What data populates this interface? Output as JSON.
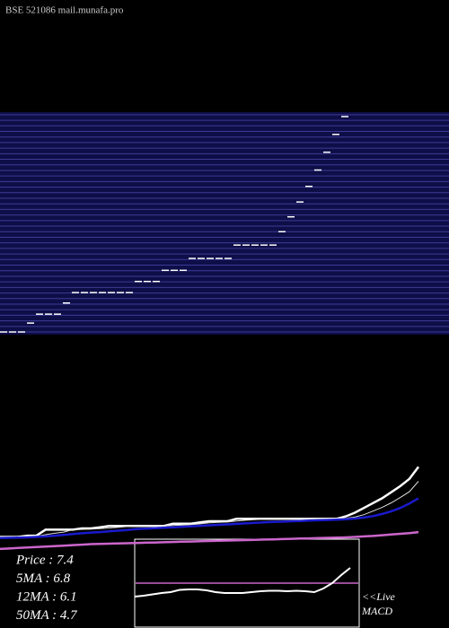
{
  "chart_data": [
    {
      "type": "candle",
      "title": "BSE 521086  mail.munafa.pro",
      "color": "#ffffff",
      "band_color": "#0e0e48",
      "level_color": "#3c3c96",
      "ylim": [
        4.44,
        7.52
      ],
      "levels": [
        4.5,
        4.575,
        4.65,
        4.725,
        4.8,
        4.875,
        4.95,
        5.025,
        5.1,
        5.175,
        5.25,
        5.325,
        5.4,
        5.475,
        5.55,
        5.625,
        5.7,
        5.775,
        5.85,
        5.925,
        6.0,
        6.075,
        6.15,
        6.225,
        6.3,
        6.375,
        6.45,
        6.525,
        6.6,
        6.675,
        6.75,
        6.825,
        6.9,
        6.975,
        7.05,
        7.125,
        7.2,
        7.275,
        7.35,
        7.425
      ],
      "values": [
        4.5,
        4.5,
        4.5,
        4.62,
        4.74,
        4.74,
        4.74,
        4.89,
        5.03,
        5.03,
        5.03,
        5.03,
        5.03,
        5.03,
        5.03,
        5.18,
        5.18,
        5.18,
        5.33,
        5.33,
        5.33,
        5.49,
        5.49,
        5.49,
        5.49,
        5.49,
        5.67,
        5.67,
        5.67,
        5.67,
        5.67,
        5.85,
        6.05,
        6.25,
        6.46,
        6.68,
        6.92,
        7.16,
        7.4
      ]
    },
    {
      "type": "line",
      "ylim": [
        3.7,
        7.6
      ],
      "series": [
        {
          "label": "Price   : 7.4",
          "color": "#ffffff",
          "width": 2.5,
          "values": [
            4.5,
            4.5,
            4.5,
            4.55,
            4.55,
            4.8,
            4.8,
            4.8,
            4.8,
            4.85,
            4.85,
            4.9,
            4.95,
            4.95,
            4.95,
            4.95,
            4.95,
            4.95,
            4.95,
            5.05,
            5.05,
            5.05,
            5.1,
            5.15,
            5.15,
            5.15,
            5.25,
            5.25,
            5.25,
            5.25,
            5.25,
            5.25,
            5.25,
            5.25,
            5.25,
            5.25,
            5.25,
            5.25,
            5.35,
            5.5,
            5.7,
            5.9,
            6.1,
            6.35,
            6.6,
            6.9,
            7.4
          ]
        },
        {
          "label": "5MA : 6.8",
          "color": "#dddddd",
          "width": 1,
          "values": [
            4.5,
            4.5,
            4.5,
            4.51,
            4.52,
            4.59,
            4.65,
            4.7,
            4.8,
            4.81,
            4.82,
            4.84,
            4.87,
            4.9,
            4.93,
            4.95,
            4.95,
            4.95,
            4.95,
            4.97,
            4.99,
            5.01,
            5.04,
            5.08,
            5.1,
            5.12,
            5.16,
            5.19,
            5.21,
            5.23,
            5.25,
            5.25,
            5.25,
            5.25,
            5.25,
            5.25,
            5.25,
            5.25,
            5.27,
            5.32,
            5.42,
            5.57,
            5.72,
            5.91,
            6.13,
            6.37,
            6.8
          ]
        },
        {
          "label": "12MA : 6.1",
          "color": "#1a1acc",
          "width": 2.5,
          "values": [
            4.45,
            4.46,
            4.47,
            4.48,
            4.5,
            4.52,
            4.55,
            4.58,
            4.62,
            4.65,
            4.68,
            4.7,
            4.73,
            4.76,
            4.79,
            4.82,
            4.84,
            4.86,
            4.88,
            4.9,
            4.92,
            4.94,
            4.96,
            4.98,
            5.0,
            5.02,
            5.04,
            5.06,
            5.08,
            5.1,
            5.12,
            5.13,
            5.15,
            5.16,
            5.18,
            5.19,
            5.2,
            5.21,
            5.23,
            5.26,
            5.3,
            5.36,
            5.45,
            5.56,
            5.7,
            5.88,
            6.1
          ]
        },
        {
          "label": "50MA : 4.7",
          "color": "#cc66cc",
          "width": 2.5,
          "values": [
            4.0,
            4.02,
            4.04,
            4.06,
            4.08,
            4.1,
            4.12,
            4.14,
            4.16,
            4.18,
            4.2,
            4.21,
            4.22,
            4.23,
            4.24,
            4.25,
            4.26,
            4.27,
            4.28,
            4.29,
            4.3,
            4.31,
            4.32,
            4.33,
            4.34,
            4.35,
            4.36,
            4.37,
            4.38,
            4.39,
            4.4,
            4.41,
            4.42,
            4.43,
            4.44,
            4.45,
            4.46,
            4.47,
            4.48,
            4.5,
            4.52,
            4.54,
            4.57,
            4.6,
            4.63,
            4.66,
            4.7
          ]
        }
      ]
    },
    {
      "type": "macd",
      "label": "MACD",
      "live": "<<Live",
      "ylim": [
        -1,
        1
      ],
      "zero": 0,
      "zero_color": "#cc66cc",
      "color": "#ffffff",
      "values": [
        -0.3,
        -0.28,
        -0.25,
        -0.22,
        -0.2,
        -0.15,
        -0.14,
        -0.14,
        -0.16,
        -0.2,
        -0.22,
        -0.22,
        -0.22,
        -0.2,
        -0.18,
        -0.17,
        -0.17,
        -0.18,
        -0.17,
        -0.18,
        -0.2,
        -0.12,
        0.0,
        0.18,
        0.34
      ]
    }
  ]
}
